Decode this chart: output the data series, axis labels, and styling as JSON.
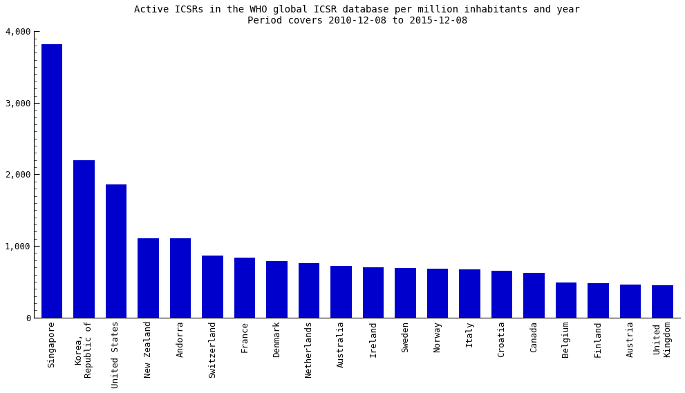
{
  "title_line1": "Active ICSRs in the WHO global ICSR database per million inhabitants and year",
  "title_line2": "Period covers 2010-12-08 to 2015-12-08",
  "categories": [
    "Singapore",
    "Korea,\nRepublic of",
    "United States",
    "New Zealand",
    "Andorra",
    "Switzerland",
    "France",
    "Denmark",
    "Netherlands",
    "Australia",
    "Ireland",
    "Sweden",
    "Norway",
    "Italy",
    "Croatia",
    "Canada",
    "Belgium",
    "Finland",
    "Austria",
    "United\nKingdom"
  ],
  "values": [
    3820,
    2200,
    1855,
    1110,
    1110,
    870,
    840,
    790,
    760,
    725,
    700,
    690,
    680,
    670,
    650,
    620,
    490,
    475,
    465,
    455
  ],
  "bar_color": "#0000CC",
  "ylim_min": 0,
  "ylim_max": 4000,
  "title_fontsize": 10,
  "bar_width": 0.65,
  "background_color": "#ffffff",
  "tick_label_fontsize": 9,
  "ytick_major_interval": 1000,
  "ytick_minor_interval": 100
}
